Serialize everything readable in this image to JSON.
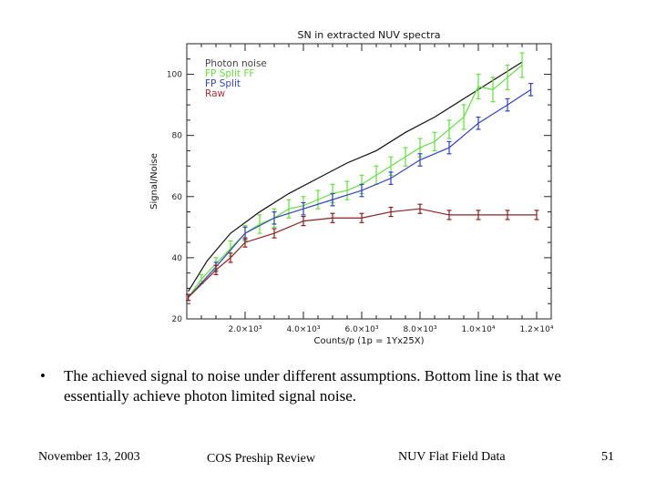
{
  "chart_data": {
    "type": "line",
    "title": "SN in extracted NUV spectra",
    "xlabel": "Counts/p (1p = 1Yx25X)",
    "ylabel": "Signal/Noise",
    "xlim": [
      0,
      12500
    ],
    "ylim": [
      20,
      110
    ],
    "x_ticks": [
      {
        "value": 2000,
        "label": "2.0×10³"
      },
      {
        "value": 4000,
        "label": "4.0×10³"
      },
      {
        "value": 6000,
        "label": "6.0×10³"
      },
      {
        "value": 8000,
        "label": "8.0×10³"
      },
      {
        "value": 10000,
        "label": "1.0×10⁴"
      },
      {
        "value": 12000,
        "label": "1.2×10⁴"
      }
    ],
    "y_ticks": [
      {
        "value": 20,
        "label": "20"
      },
      {
        "value": 40,
        "label": "40"
      },
      {
        "value": 60,
        "label": "60"
      },
      {
        "value": 80,
        "label": "80"
      },
      {
        "value": 100,
        "label": "100"
      }
    ],
    "legend": [
      {
        "label": "Photon  noise",
        "color": "#444444"
      },
      {
        "label": "FP  Split  FF",
        "color": "#66dd44"
      },
      {
        "label": "FP  Split",
        "color": "#3344bb"
      },
      {
        "label": "Raw",
        "color": "#aa3333"
      }
    ],
    "legend_position": "top-left",
    "series": [
      {
        "name": "Photon  noise",
        "color": "#111111",
        "errorbars": false,
        "x": [
          50,
          700,
          1500,
          2500,
          3500,
          4500,
          5500,
          6500,
          7500,
          8500,
          9500,
          10500,
          11500
        ],
        "y": [
          29,
          39,
          48,
          55,
          61,
          66,
          71,
          75,
          81,
          86,
          92,
          98,
          104
        ]
      },
      {
        "name": "FP  Split  FF",
        "color": "#66dd44",
        "errorbars": true,
        "x": [
          50,
          500,
          1000,
          1500,
          2000,
          2500,
          3000,
          3500,
          4000,
          4500,
          5000,
          5500,
          6000,
          6500,
          7000,
          7500,
          8000,
          8500,
          9000,
          9500,
          10000,
          10500,
          11000,
          11500
        ],
        "y": [
          27,
          33,
          38,
          43,
          48,
          51,
          53,
          56,
          57,
          59,
          61,
          62,
          64,
          67,
          70,
          73,
          76,
          78,
          82,
          86,
          96,
          95,
          99,
          103
        ],
        "err": [
          1,
          1.5,
          2,
          2.5,
          2.5,
          3,
          3,
          3,
          3,
          3,
          3,
          3,
          3,
          3,
          3,
          3,
          3,
          3,
          3,
          4,
          4,
          4,
          4,
          4
        ]
      },
      {
        "name": "FP  Split",
        "color": "#3344bb",
        "errorbars": true,
        "x": [
          50,
          1000,
          2000,
          3000,
          4000,
          5000,
          6000,
          7000,
          8000,
          9000,
          10000,
          11000,
          11800
        ],
        "y": [
          27,
          37,
          48,
          53,
          56,
          59,
          62,
          66,
          72,
          76,
          84,
          90,
          95
        ],
        "err": [
          1,
          1.5,
          2,
          2,
          2,
          2,
          2,
          2,
          2,
          2,
          2,
          2,
          2
        ]
      },
      {
        "name": "Raw",
        "color": "#8b2020",
        "errorbars": true,
        "x": [
          50,
          1000,
          1500,
          2000,
          3000,
          4000,
          5000,
          6000,
          7000,
          8000,
          9000,
          10000,
          11000,
          12000
        ],
        "y": [
          27,
          36,
          40,
          45,
          48,
          52,
          53,
          53,
          55,
          56,
          54,
          54,
          54,
          54
        ],
        "err": [
          1,
          1.5,
          1.5,
          1.5,
          1.5,
          1.5,
          1.5,
          1.5,
          1.5,
          1.5,
          1.5,
          1.5,
          1.5,
          1.5
        ]
      }
    ]
  },
  "bullet": {
    "symbol": "•",
    "text": "The achieved signal to noise under different assumptions.  Bottom line is that we essentially achieve photon limited signal noise."
  },
  "footer": {
    "date": "November 13, 2003",
    "center": "COS Preship Review",
    "right": "NUV Flat Field Data",
    "page": "51"
  }
}
